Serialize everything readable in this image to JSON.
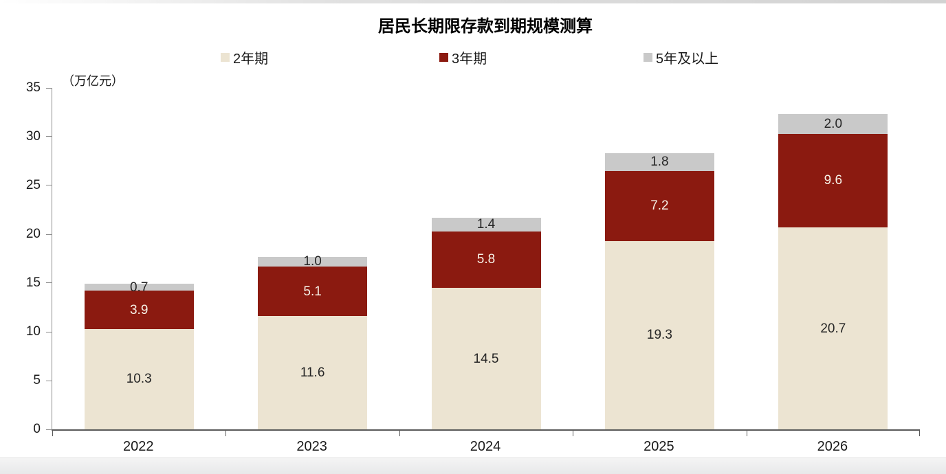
{
  "page": {
    "background": "#ffffff"
  },
  "chart_data": {
    "type": "bar",
    "stacked": true,
    "title": "居民长期限存款到期规模测算",
    "unit_label": "（万亿元）",
    "categories": [
      "2022",
      "2023",
      "2024",
      "2025",
      "2026"
    ],
    "series": [
      {
        "name": "2年期",
        "color": "#ece4d2",
        "label_color": "#262626",
        "values": [
          10.3,
          11.6,
          14.5,
          19.3,
          20.7
        ]
      },
      {
        "name": "3年期",
        "color": "#8b1a10",
        "label_color": "#f7f2e8",
        "values": [
          3.9,
          5.1,
          5.8,
          7.2,
          9.6
        ]
      },
      {
        "name": "5年及以上",
        "color": "#c9c9c9",
        "label_color": "#262626",
        "values": [
          0.7,
          1.0,
          1.4,
          1.8,
          2.0
        ]
      }
    ],
    "totals": [
      14.9,
      17.7,
      21.7,
      28.3,
      32.3
    ],
    "ylim": [
      0,
      35
    ],
    "ytick_interval": 5,
    "yticks": [
      0,
      5,
      10,
      15,
      20,
      25,
      30,
      35
    ],
    "grid": false,
    "legend_position": "top",
    "axis_colors": {
      "y_axis": "#8c8c8c",
      "x_axis": "#595959"
    }
  }
}
